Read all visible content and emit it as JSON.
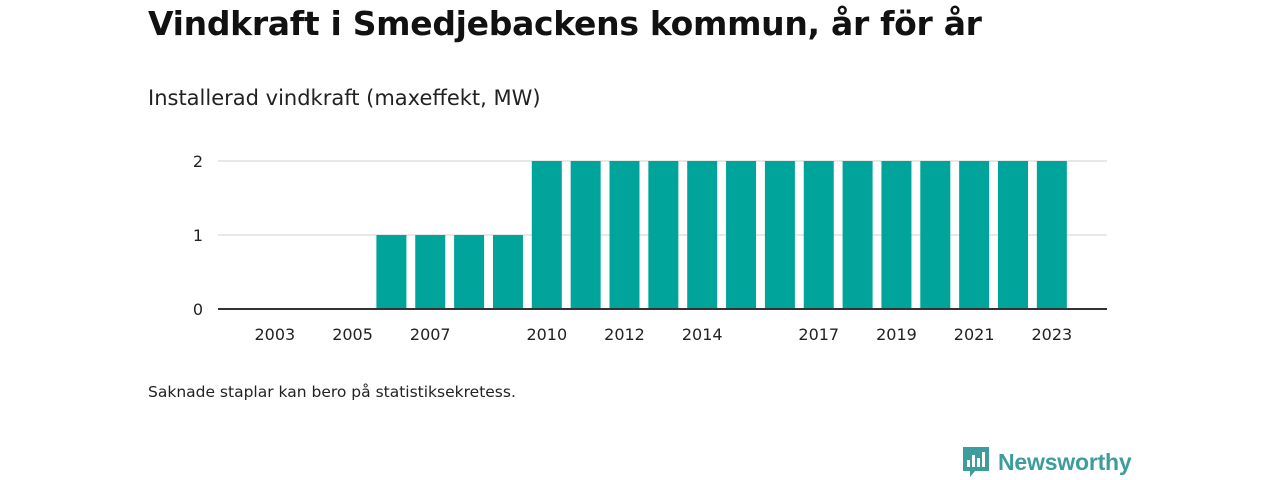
{
  "title": "Vindkraft i Smedjebackens kommun, år för år",
  "subtitle": "Installerad vindkraft (maxeffekt, MW)",
  "note": "Saknade staplar kan bero på statistiksekretess.",
  "brand": {
    "name": "Newsworthy",
    "icon": "newsworthy-logo-icon",
    "color": "#3d9c9c"
  },
  "chart_data": {
    "type": "bar",
    "title": "Installerad vindkraft (maxeffekt, MW)",
    "categories": [
      "2002",
      "2003",
      "2004",
      "2005",
      "2006",
      "2007",
      "2008",
      "2009",
      "2010",
      "2011",
      "2012",
      "2013",
      "2014",
      "2015",
      "2016",
      "2017",
      "2018",
      "2019",
      "2020",
      "2021",
      "2022",
      "2023"
    ],
    "values": [
      0,
      0,
      0,
      0,
      1,
      1,
      1,
      1,
      2,
      2,
      2,
      2,
      2,
      2,
      2,
      2,
      2,
      2,
      2,
      2,
      2,
      2
    ],
    "x_tick_labels": [
      "2003",
      "2005",
      "2007",
      "2010",
      "2012",
      "2014",
      "2017",
      "2019",
      "2021",
      "2023"
    ],
    "y_ticks": [
      "0",
      "1",
      "2"
    ],
    "ylim": [
      0,
      2
    ],
    "grid": true,
    "bar_color": "#00a49a",
    "xlabel": "",
    "ylabel": ""
  }
}
